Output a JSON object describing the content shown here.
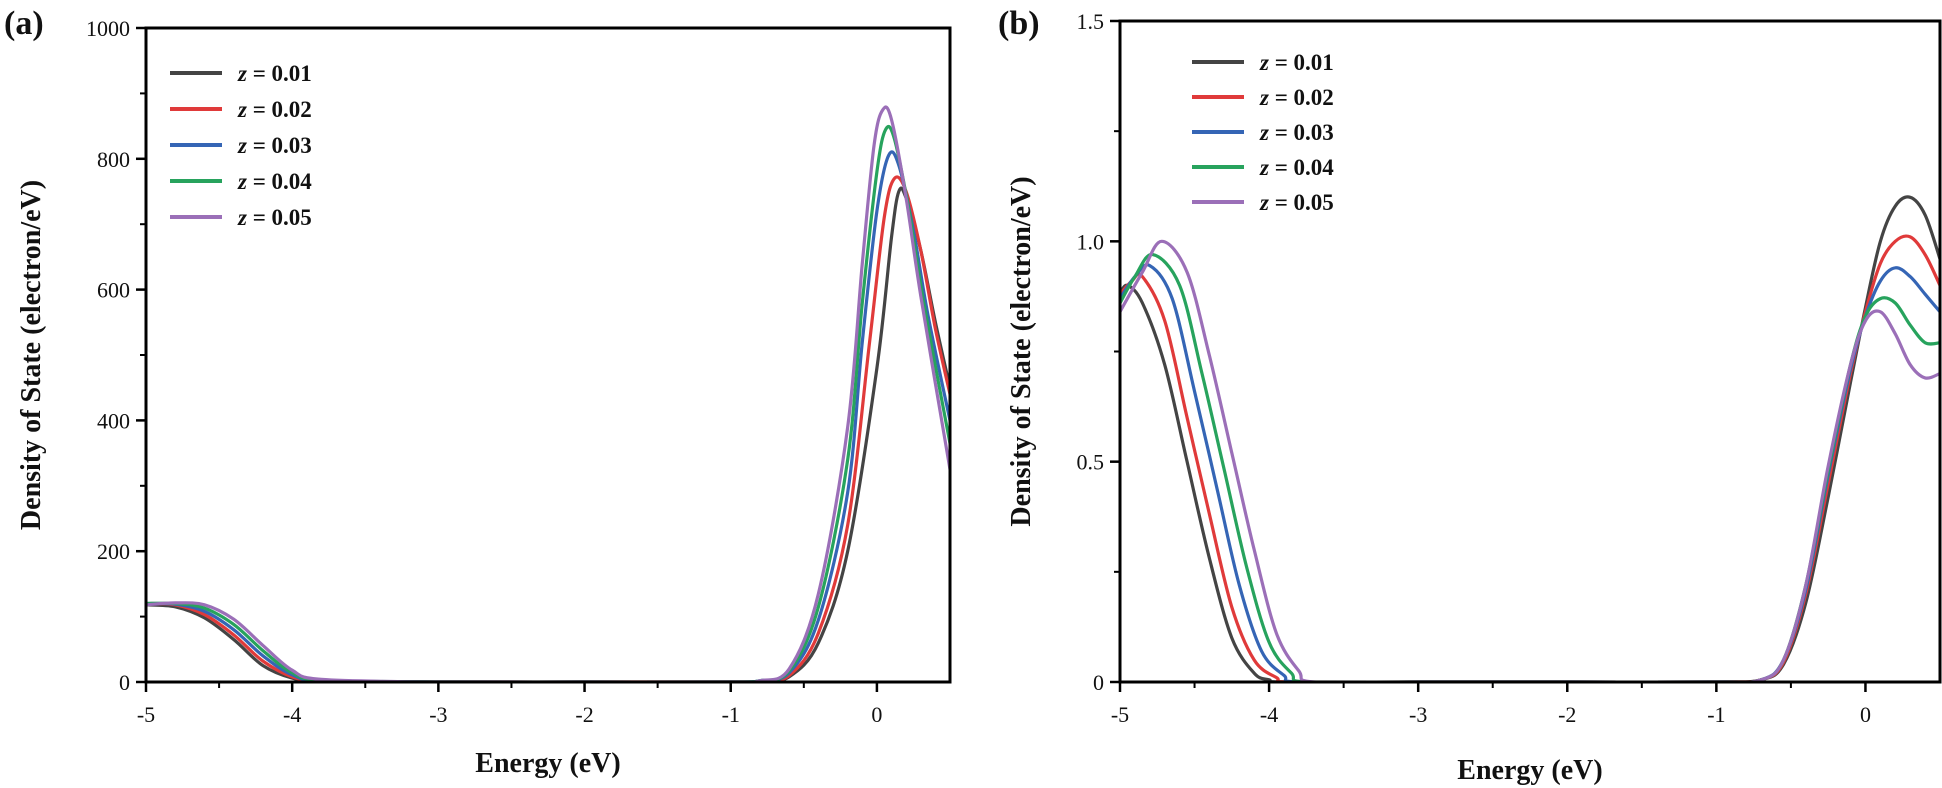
{
  "chart_data": [
    {
      "type": "line",
      "panel_label": "(a)",
      "xlabel": "Energy (eV)",
      "ylabel": "Density of State (electron/eV)",
      "xlim": [
        -5,
        0.5
      ],
      "ylim": [
        0,
        1000
      ],
      "xticks": [
        -5,
        -4,
        -3,
        -2,
        -1,
        0
      ],
      "xtick_labels": [
        "-5",
        "-4",
        "-3",
        "-2",
        "-1",
        "0"
      ],
      "yticks": [
        0,
        200,
        400,
        600,
        800,
        1000
      ],
      "ytick_labels": [
        "0",
        "200",
        "400",
        "600",
        "800",
        "1000"
      ],
      "legend_position": "top-left",
      "series": [
        {
          "name": "z = 0.01",
          "var": "z",
          "value_label": " = 0.01",
          "color": "#444444",
          "x": [
            -5.0,
            -4.8,
            -4.6,
            -4.4,
            -4.2,
            -4.0,
            -3.8,
            -3.0,
            -2.0,
            -1.0,
            -0.8,
            -0.6,
            -0.4,
            -0.2,
            0.0,
            0.1,
            0.15,
            0.2,
            0.3,
            0.4,
            0.5
          ],
          "y": [
            118,
            115,
            98,
            65,
            25,
            6,
            1,
            0,
            0,
            0,
            1,
            8,
            60,
            200,
            480,
            680,
            750,
            740,
            660,
            550,
            450
          ]
        },
        {
          "name": "z = 0.02",
          "var": "z",
          "value_label": " = 0.02",
          "color": "#e03a3a",
          "x": [
            -5.0,
            -4.8,
            -4.6,
            -4.4,
            -4.2,
            -4.0,
            -3.8,
            -3.0,
            -2.0,
            -1.0,
            -0.8,
            -0.6,
            -0.4,
            -0.2,
            -0.05,
            0.05,
            0.12,
            0.2,
            0.3,
            0.4,
            0.5
          ],
          "y": [
            120,
            118,
            103,
            72,
            32,
            8,
            2,
            0,
            0,
            0,
            1,
            10,
            75,
            240,
            520,
            710,
            770,
            750,
            660,
            540,
            440
          ]
        },
        {
          "name": "z = 0.03",
          "var": "z",
          "value_label": " = 0.03",
          "color": "#3565b5",
          "x": [
            -5.0,
            -4.8,
            -4.6,
            -4.4,
            -4.2,
            -4.0,
            -3.8,
            -3.0,
            -2.0,
            -1.0,
            -0.8,
            -0.6,
            -0.4,
            -0.2,
            -0.1,
            0.0,
            0.08,
            0.15,
            0.25,
            0.35,
            0.5
          ],
          "y": [
            120,
            119,
            108,
            80,
            40,
            11,
            2,
            0,
            0,
            0,
            2,
            14,
            95,
            290,
            520,
            720,
            805,
            790,
            690,
            560,
            400
          ]
        },
        {
          "name": "z = 0.04",
          "var": "z",
          "value_label": " = 0.04",
          "color": "#27a35d",
          "x": [
            -5.0,
            -4.8,
            -4.6,
            -4.4,
            -4.2,
            -4.0,
            -3.8,
            -3.0,
            -2.0,
            -1.0,
            -0.8,
            -0.6,
            -0.4,
            -0.2,
            -0.1,
            0.0,
            0.06,
            0.12,
            0.22,
            0.32,
            0.5
          ],
          "y": [
            120,
            120,
            113,
            88,
            48,
            14,
            3,
            0,
            0,
            0,
            2,
            17,
            115,
            340,
            580,
            780,
            845,
            830,
            720,
            580,
            365
          ]
        },
        {
          "name": "z = 0.05",
          "var": "z",
          "value_label": " = 0.05",
          "color": "#9b6fb8",
          "x": [
            -5.0,
            -4.8,
            -4.6,
            -4.4,
            -4.2,
            -4.0,
            -3.8,
            -3.0,
            -2.0,
            -1.0,
            -0.8,
            -0.6,
            -0.4,
            -0.2,
            -0.1,
            -0.02,
            0.04,
            0.1,
            0.2,
            0.3,
            0.5
          ],
          "y": [
            118,
            121,
            118,
            96,
            56,
            18,
            4,
            0,
            0,
            0,
            2,
            20,
            135,
            390,
            640,
            820,
            875,
            860,
            740,
            590,
            325
          ]
        }
      ]
    },
    {
      "type": "line",
      "panel_label": "(b)",
      "xlabel": "Energy (eV)",
      "ylabel": "Density of State (electron/eV)",
      "xlim": [
        -5,
        0.5
      ],
      "ylim": [
        0,
        1.5
      ],
      "xticks": [
        -5,
        -4,
        -3,
        -2,
        -1,
        0
      ],
      "xtick_labels": [
        "-5",
        "-4",
        "-3",
        "-2",
        "-1",
        "0"
      ],
      "yticks": [
        0,
        0.5,
        1.0,
        1.5
      ],
      "ytick_labels": [
        "0",
        "0.5",
        "1.0",
        "1.5"
      ],
      "legend_position": "top-left",
      "series": [
        {
          "name": "z = 0.01",
          "var": "z",
          "value_label": " = 0.01",
          "color": "#444444",
          "x": [
            -5.0,
            -4.95,
            -4.85,
            -4.7,
            -4.55,
            -4.4,
            -4.25,
            -4.1,
            -4.0,
            -3.9,
            -3.0,
            -2.0,
            -1.0,
            -0.7,
            -0.55,
            -0.4,
            -0.25,
            -0.1,
            0.0,
            0.1,
            0.2,
            0.3,
            0.4,
            0.5
          ],
          "y": [
            0.88,
            0.9,
            0.86,
            0.72,
            0.5,
            0.28,
            0.1,
            0.02,
            0.005,
            0,
            0,
            0,
            0,
            0.005,
            0.04,
            0.18,
            0.42,
            0.68,
            0.85,
            1.0,
            1.08,
            1.1,
            1.06,
            0.96
          ]
        },
        {
          "name": "z = 0.02",
          "var": "z",
          "value_label": " = 0.02",
          "color": "#e03a3a",
          "x": [
            -5.0,
            -4.92,
            -4.85,
            -4.7,
            -4.55,
            -4.4,
            -4.25,
            -4.1,
            -3.95,
            -3.85,
            -3.0,
            -2.0,
            -1.0,
            -0.7,
            -0.55,
            -0.4,
            -0.25,
            -0.1,
            0.0,
            0.1,
            0.2,
            0.3,
            0.4,
            0.5
          ],
          "y": [
            0.88,
            0.91,
            0.92,
            0.82,
            0.6,
            0.38,
            0.17,
            0.05,
            0.01,
            0,
            0,
            0,
            0,
            0.005,
            0.045,
            0.2,
            0.45,
            0.7,
            0.84,
            0.95,
            1.0,
            1.01,
            0.97,
            0.9
          ]
        },
        {
          "name": "z = 0.03",
          "var": "z",
          "value_label": " = 0.03",
          "color": "#3565b5",
          "x": [
            -5.0,
            -4.9,
            -4.8,
            -4.65,
            -4.5,
            -4.35,
            -4.2,
            -4.05,
            -3.9,
            -3.8,
            -3.0,
            -2.0,
            -1.0,
            -0.7,
            -0.55,
            -0.4,
            -0.25,
            -0.1,
            0.0,
            0.1,
            0.2,
            0.3,
            0.4,
            0.5
          ],
          "y": [
            0.87,
            0.92,
            0.945,
            0.87,
            0.66,
            0.44,
            0.22,
            0.07,
            0.015,
            0,
            0,
            0,
            0,
            0.005,
            0.05,
            0.21,
            0.47,
            0.71,
            0.83,
            0.91,
            0.94,
            0.92,
            0.88,
            0.84
          ]
        },
        {
          "name": "z = 0.04",
          "var": "z",
          "value_label": " = 0.04",
          "color": "#27a35d",
          "x": [
            -5.0,
            -4.9,
            -4.78,
            -4.6,
            -4.45,
            -4.3,
            -4.15,
            -4.0,
            -3.85,
            -3.75,
            -3.0,
            -2.0,
            -1.0,
            -0.7,
            -0.55,
            -0.4,
            -0.25,
            -0.1,
            0.0,
            0.1,
            0.2,
            0.3,
            0.4,
            0.5
          ],
          "y": [
            0.86,
            0.92,
            0.97,
            0.9,
            0.7,
            0.48,
            0.26,
            0.09,
            0.02,
            0,
            0,
            0,
            0,
            0.005,
            0.05,
            0.22,
            0.48,
            0.72,
            0.83,
            0.87,
            0.86,
            0.81,
            0.77,
            0.77
          ]
        },
        {
          "name": "z = 0.05",
          "var": "z",
          "value_label": " = 0.05",
          "color": "#9b6fb8",
          "x": [
            -5.0,
            -4.85,
            -4.72,
            -4.55,
            -4.4,
            -4.25,
            -4.1,
            -3.95,
            -3.8,
            -3.7,
            -3.0,
            -2.0,
            -1.0,
            -0.7,
            -0.55,
            -0.4,
            -0.25,
            -0.1,
            0.0,
            0.1,
            0.2,
            0.3,
            0.4,
            0.5
          ],
          "y": [
            0.84,
            0.93,
            1.0,
            0.93,
            0.74,
            0.52,
            0.3,
            0.11,
            0.025,
            0,
            0,
            0,
            0,
            0.005,
            0.05,
            0.22,
            0.49,
            0.72,
            0.82,
            0.84,
            0.79,
            0.72,
            0.69,
            0.7
          ]
        }
      ]
    }
  ]
}
